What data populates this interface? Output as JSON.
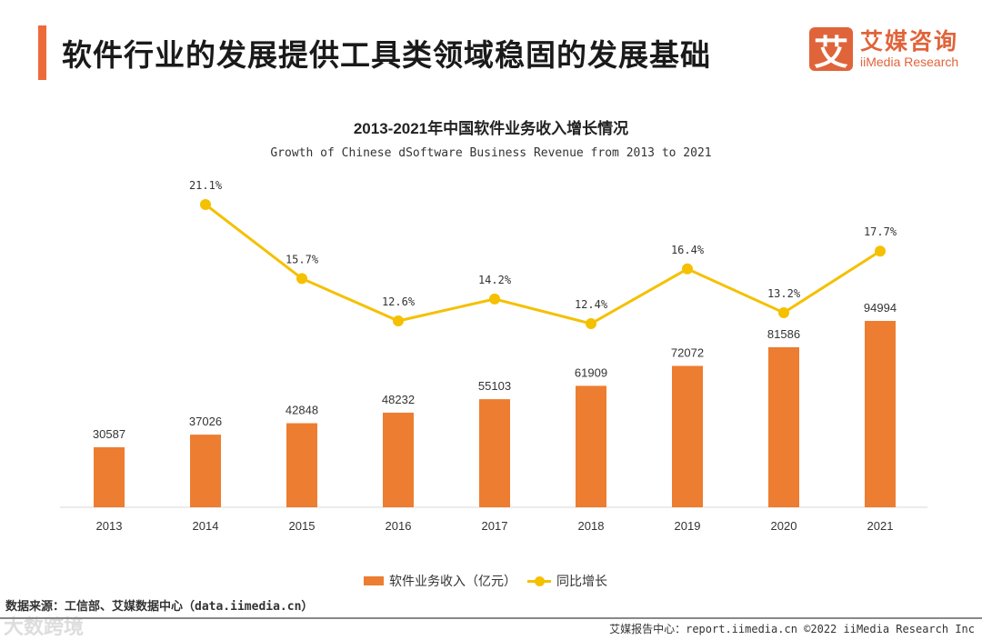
{
  "header": {
    "title": "软件行业的发展提供工具类领域稳固的发展基础",
    "logo_cn": "艾媒咨询",
    "logo_en": "iiMedia Research",
    "logo_mark": "艾"
  },
  "chart_data": {
    "type": "bar+line",
    "title": "2013-2021年中国软件业务收入增长情况",
    "subtitle": "Growth of Chinese dSoftware Business Revenue from 2013 to 2021",
    "categories": [
      "2013",
      "2014",
      "2015",
      "2016",
      "2017",
      "2018",
      "2019",
      "2020",
      "2021"
    ],
    "series": [
      {
        "name": "软件业务收入（亿元）",
        "type": "bar",
        "color": "#ed7d31",
        "values": [
          30587,
          37026,
          42848,
          48232,
          55103,
          61909,
          72072,
          81586,
          94994
        ]
      },
      {
        "name": "同比增长",
        "type": "line",
        "color": "#f5c000",
        "values": [
          null,
          21.1,
          15.7,
          12.6,
          14.2,
          12.4,
          16.4,
          13.2,
          17.7
        ],
        "labels": [
          "",
          "21.1%",
          "15.7%",
          "12.6%",
          "14.2%",
          "12.4%",
          "16.4%",
          "13.2%",
          "17.7%"
        ]
      }
    ],
    "legend": "bottom"
  },
  "source": "数据来源：工信部、艾媒数据中心（data.iimedia.cn）",
  "footer": "艾媒报告中心：report.iimedia.cn  ©2022  iiMedia Research  Inc",
  "watermark": "大数跨境"
}
